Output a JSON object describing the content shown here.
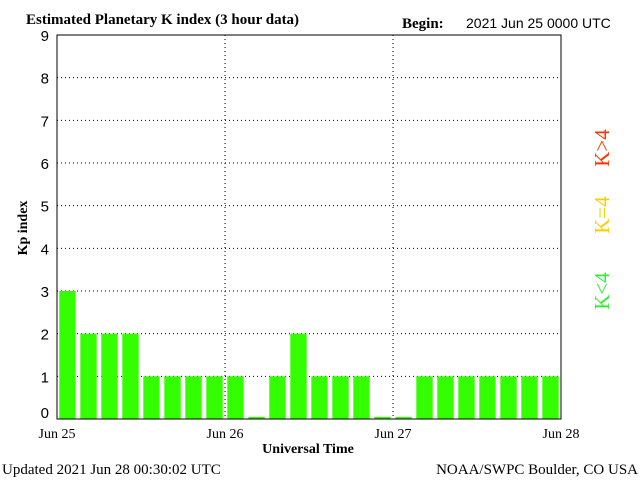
{
  "header": {
    "title": "Estimated Planetary K index (3 hour data)",
    "begin_label": "Begin:",
    "begin_value": "2021 Jun 25 0000 UTC"
  },
  "footer": {
    "updated": "Updated 2021 Jun 28 00:30:02 UTC",
    "source": "NOAA/SWPC Boulder, CO USA"
  },
  "legend": [
    {
      "label": "K<4",
      "color": "#33ee33"
    },
    {
      "label": "K=4",
      "color": "#ffcc00"
    },
    {
      "label": "K>4",
      "color": "#ff3300"
    }
  ],
  "chart_data": {
    "type": "bar",
    "title": "Estimated Planetary K index (3 hour data)",
    "xlabel": "Universal Time",
    "ylabel": "Kp index",
    "ylim": [
      0,
      9
    ],
    "yticks": [
      "0",
      "1",
      "2",
      "3",
      "4",
      "5",
      "6",
      "7",
      "8",
      "9"
    ],
    "xticks": [
      "Jun 25",
      "Jun 26",
      "Jun 27",
      "Jun 28"
    ],
    "interval_hours": 3,
    "values": [
      3,
      2,
      2,
      2,
      1,
      1,
      1,
      1,
      1,
      0.05,
      1,
      2,
      1,
      1,
      1,
      0.05,
      0.05,
      1,
      1,
      1,
      1,
      1,
      1,
      1
    ],
    "bar_color": "#33ff00",
    "grid": "dotted",
    "legend_placement": "right"
  }
}
